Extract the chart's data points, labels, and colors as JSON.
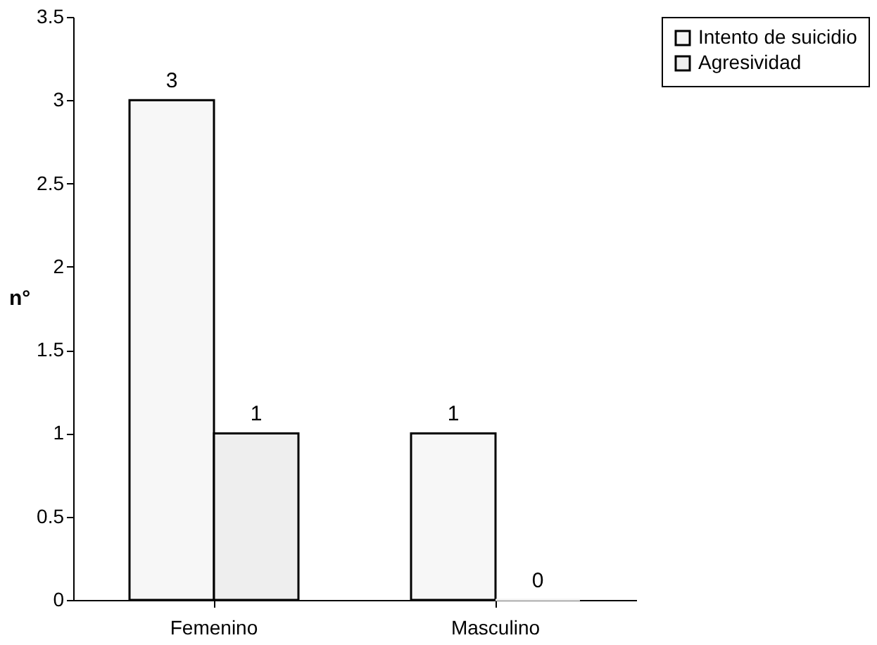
{
  "chart_data": {
    "type": "bar",
    "ylabel": "n°",
    "categories": [
      "Femenino",
      "Masculino"
    ],
    "series": [
      {
        "name": "Intento de suicidio",
        "color": "#f7f7f7",
        "values": [
          3,
          1
        ]
      },
      {
        "name": "Agresividad",
        "color": "#eeeeee",
        "values": [
          1,
          0
        ]
      }
    ],
    "ylim": [
      0,
      3.5
    ],
    "yticks": [
      0,
      0.5,
      1,
      1.5,
      2,
      2.5,
      3,
      3.5
    ],
    "grid": false,
    "legend": "right",
    "data_labels": true
  }
}
